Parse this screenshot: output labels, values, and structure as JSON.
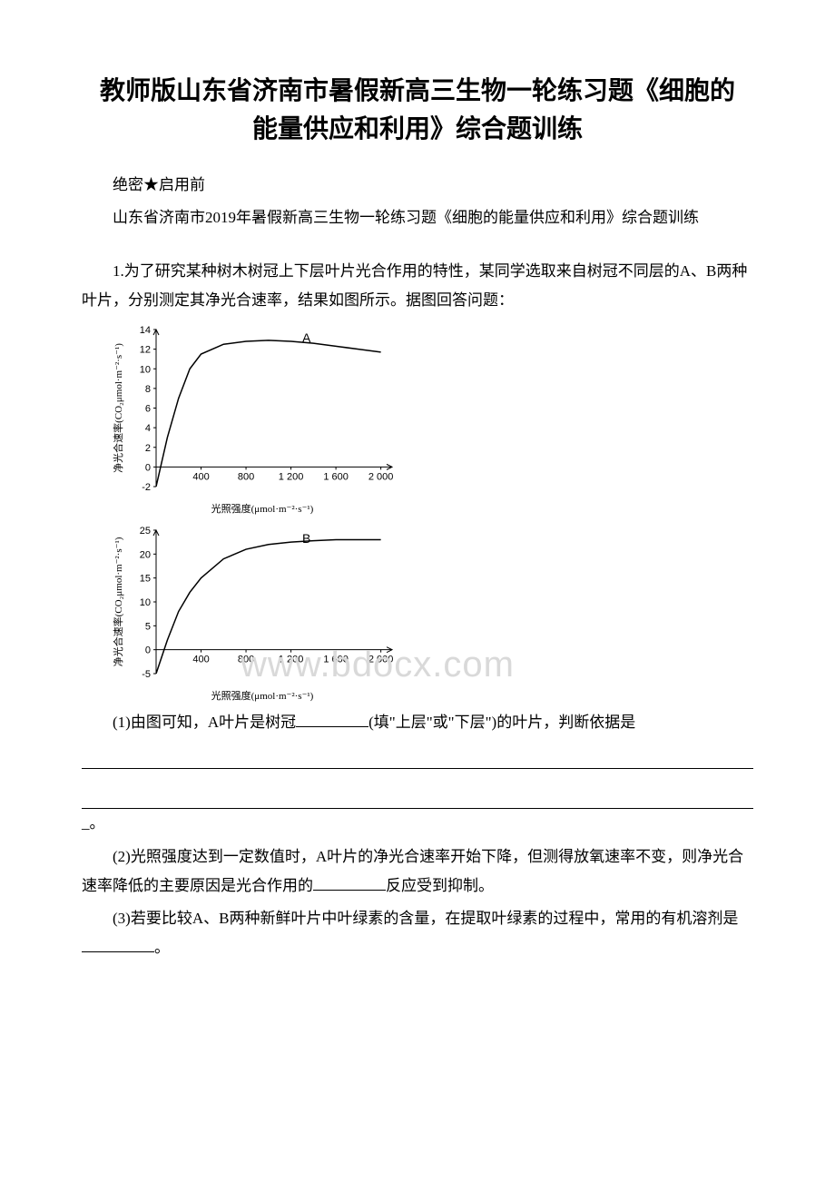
{
  "title_line1": "教师版山东省济南市暑假新高三生物一轮练习题《细胞的",
  "title_line2": "能量供应和利用》综合题训练",
  "secret": "绝密★启用前",
  "subtitle": "山东省济南市2019年暑假新高三生物一轮练习题《细胞的能量供应和利用》综合题训练",
  "q1_stem": "1.为了研究某种树木树冠上下层叶片光合作用的特性，某同学选取来自树冠不同层的A、B两种叶片，分别测定其净光合速率，结果如图所示。据图回答问题：",
  "q1_1_pre": "(1)由图可知，A叶片是树冠",
  "q1_1_mid": "(填\"上层\"或\"下层\")的叶片，判断依据是",
  "q1_1_tail": "。",
  "q1_2": "(2)光照强度达到一定数值时，A叶片的净光合速率开始下降，但测得放氧速率不变，则净光合速率降低的主要原因是光合作用的",
  "q1_2_tail": "反应受到抑制。",
  "q1_3": "(3)若要比较A、B两种新鲜叶片中叶绿素的含量，在提取叶绿素的过程中，常用的有机溶剂是",
  "q1_3_tail": "。",
  "watermark": "www.bdocx.com",
  "tail_dangle": "_",
  "chartA": {
    "type": "line",
    "label": "A",
    "xlabel": "光照强度(μmol·m⁻²·s⁻¹)",
    "ylabel": "净光合速率(CO₂μmol·m⁻²·s⁻¹)",
    "xticks": [
      400,
      800,
      1200,
      1600,
      2000
    ],
    "xtick_labels": [
      "400",
      "800",
      "1 200",
      "1 600",
      "2 000"
    ],
    "yticks": [
      -2,
      0,
      2,
      4,
      6,
      8,
      10,
      12,
      14
    ],
    "xlim": [
      0,
      2100
    ],
    "ylim": [
      -2,
      14
    ],
    "line_color": "#000000",
    "axis_color": "#000000",
    "background": "#ffffff",
    "line_width": 1.5,
    "font_size_axis": 11,
    "data_x": [
      0,
      100,
      200,
      300,
      400,
      600,
      800,
      1000,
      1200,
      1400,
      1600,
      1800,
      2000
    ],
    "data_y": [
      -2,
      3,
      7,
      10,
      11.5,
      12.5,
      12.8,
      12.9,
      12.8,
      12.6,
      12.3,
      12.0,
      11.7
    ]
  },
  "chartB": {
    "type": "line",
    "label": "B",
    "xlabel": "光照强度(μmol·m⁻²·s⁻¹)",
    "ylabel": "净光合速率(CO₂μmol·m⁻²·s⁻¹)",
    "xticks": [
      400,
      800,
      1200,
      1600,
      2000
    ],
    "xtick_labels": [
      "400",
      "800",
      "1 200",
      "1 600",
      "2 000"
    ],
    "yticks": [
      -5,
      0,
      5,
      10,
      15,
      20,
      25
    ],
    "xlim": [
      0,
      2100
    ],
    "ylim": [
      -5,
      25
    ],
    "line_color": "#000000",
    "axis_color": "#000000",
    "background": "#ffffff",
    "line_width": 1.5,
    "font_size_axis": 11,
    "data_x": [
      0,
      100,
      200,
      300,
      400,
      600,
      800,
      1000,
      1200,
      1400,
      1600,
      1800,
      2000
    ],
    "data_y": [
      -5,
      2,
      8,
      12,
      15,
      19,
      21,
      22,
      22.5,
      22.8,
      23,
      23,
      23
    ]
  }
}
